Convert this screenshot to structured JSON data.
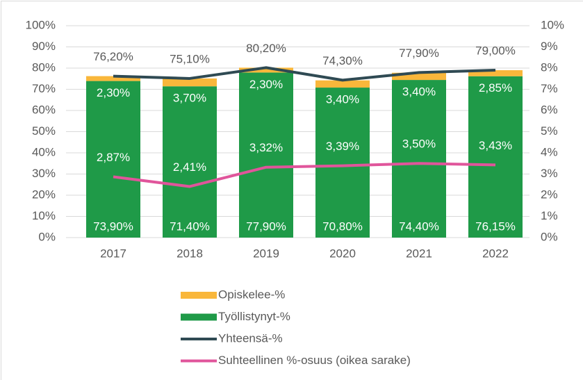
{
  "chart_data": {
    "type": "bar",
    "stacked": true,
    "categories": [
      "2017",
      "2018",
      "2019",
      "2020",
      "2021",
      "2022"
    ],
    "series": [
      {
        "name": "Opiskelee-%",
        "type": "bar",
        "color": "#f9b73b",
        "values": [
          2.3,
          3.7,
          2.3,
          3.4,
          3.4,
          2.85
        ],
        "value_labels": [
          "2,30%",
          "3,70%",
          "2,30%",
          "3,40%",
          "3,40%",
          "2,85%"
        ]
      },
      {
        "name": "Työllistynyt-%",
        "type": "bar",
        "color": "#1f9a48",
        "values": [
          73.9,
          71.4,
          77.9,
          70.8,
          74.4,
          76.15
        ],
        "value_labels": [
          "73,90%",
          "71,40%",
          "77,90%",
          "70,80%",
          "74,40%",
          "76,15%"
        ]
      },
      {
        "name": "Yhteensä-%",
        "type": "line",
        "color": "#2f4a53",
        "values": [
          76.2,
          75.1,
          80.2,
          74.3,
          77.9,
          79.0
        ],
        "value_labels": [
          "76,20%",
          "75,10%",
          "80,20%",
          "74,30%",
          "77,90%",
          "79,00%"
        ]
      },
      {
        "name": "Suhteellinen %-osuus (oikea sarake)",
        "type": "line",
        "axis": "y2",
        "color": "#e0559b",
        "values": [
          2.87,
          2.41,
          3.32,
          3.39,
          3.5,
          3.43
        ],
        "value_labels": [
          "2,87%",
          "2,41%",
          "3,32%",
          "3,39%",
          "3,50%",
          "3,43%"
        ]
      }
    ],
    "ylim": [
      0,
      100
    ],
    "yticks": [
      {
        "value": 0,
        "label": "0%"
      },
      {
        "value": 10,
        "label": "10%"
      },
      {
        "value": 20,
        "label": "20%"
      },
      {
        "value": 30,
        "label": "30%"
      },
      {
        "value": 40,
        "label": "40%"
      },
      {
        "value": 50,
        "label": "50%"
      },
      {
        "value": 60,
        "label": "60%"
      },
      {
        "value": 70,
        "label": "70%"
      },
      {
        "value": 80,
        "label": "80%"
      },
      {
        "value": 90,
        "label": "90%"
      },
      {
        "value": 100,
        "label": "100%"
      }
    ],
    "y2lim": [
      0,
      10
    ],
    "y2ticks": [
      {
        "value": 0,
        "label": "0%"
      },
      {
        "value": 1,
        "label": "1%"
      },
      {
        "value": 2,
        "label": "2%"
      },
      {
        "value": 3,
        "label": "3%"
      },
      {
        "value": 4,
        "label": "4%"
      },
      {
        "value": 5,
        "label": "5%"
      },
      {
        "value": 6,
        "label": "6%"
      },
      {
        "value": 7,
        "label": "7%"
      },
      {
        "value": 8,
        "label": "8%"
      },
      {
        "value": 9,
        "label": "9%"
      },
      {
        "value": 10,
        "label": "10%"
      }
    ],
    "grid": true,
    "legend": "bottom"
  }
}
